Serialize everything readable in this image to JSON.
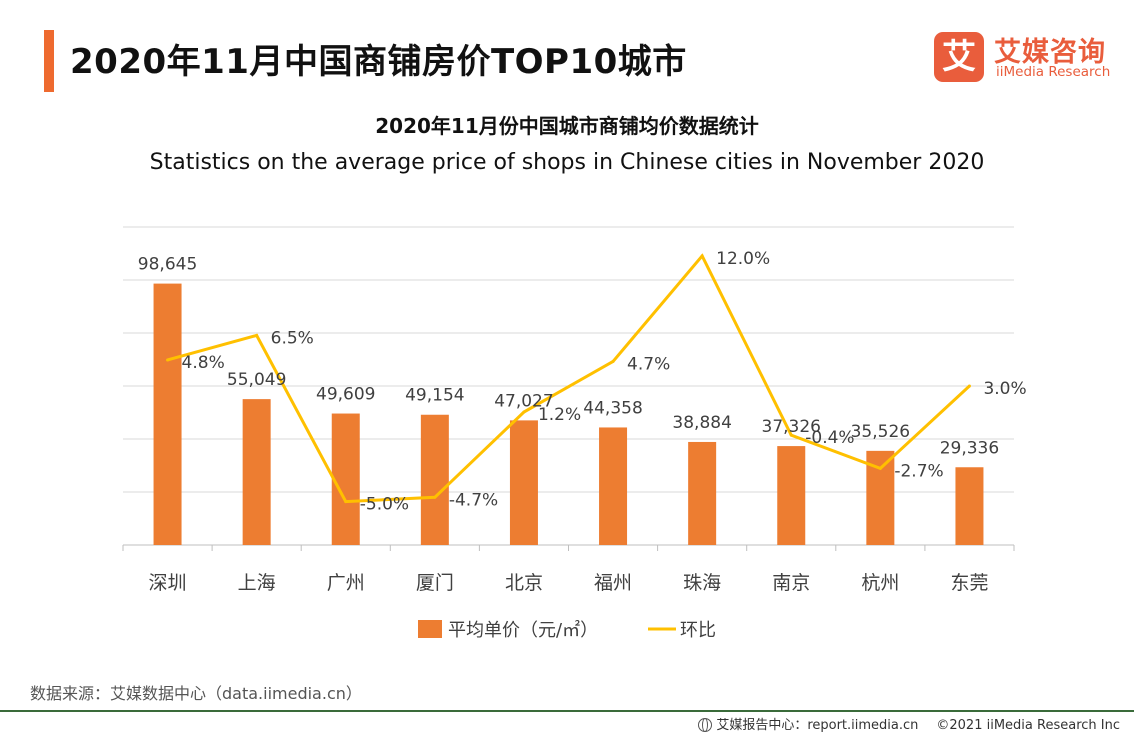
{
  "header": {
    "title": "2020年11月中国商铺房价TOP10城市"
  },
  "logo": {
    "badge": "艾",
    "name_cn": "艾媒咨询",
    "name_en": "iiMedia Research"
  },
  "chart_data": {
    "type": "bar",
    "title": "2020年11月份中国城市商铺均价数据统计",
    "subtitle": "Statistics on the average price of shops in Chinese cities in November  2020",
    "categories": [
      "深圳",
      "上海",
      "广州",
      "厦门",
      "北京",
      "福州",
      "珠海",
      "南京",
      "杭州",
      "东莞"
    ],
    "series": [
      {
        "name": "平均单价（元/㎡）",
        "kind": "bar",
        "color": "#ed7d31",
        "values": [
          98645,
          55049,
          49609,
          49154,
          47027,
          44358,
          38884,
          37326,
          35526,
          29336
        ],
        "labels": [
          "98,645",
          "55,049",
          "49,609",
          "49,154",
          "47,027",
          "44,358",
          "38,884",
          "37,326",
          "35,526",
          "29,336"
        ]
      },
      {
        "name": "环比",
        "kind": "line",
        "color": "#ffc000",
        "values": [
          4.8,
          6.5,
          -5.0,
          -4.7,
          1.2,
          4.7,
          12.0,
          -0.4,
          -2.7,
          3.0
        ],
        "labels": [
          "4.8%",
          "6.5%",
          "-5.0%",
          "-4.7%",
          "1.2%",
          "4.7%",
          "12.0%",
          "-0.4%",
          "-2.7%",
          "3.0%"
        ]
      }
    ],
    "ylim": [
      0,
      120000
    ],
    "y2lim": [
      -8,
      14
    ],
    "grid": true,
    "legend": "bottom-center"
  },
  "source": "数据来源：艾媒数据中心（data.iimedia.cn）",
  "footer": {
    "report": "艾媒报告中心：report.iimedia.cn",
    "copyright": "©2021  iiMedia Research  Inc"
  }
}
